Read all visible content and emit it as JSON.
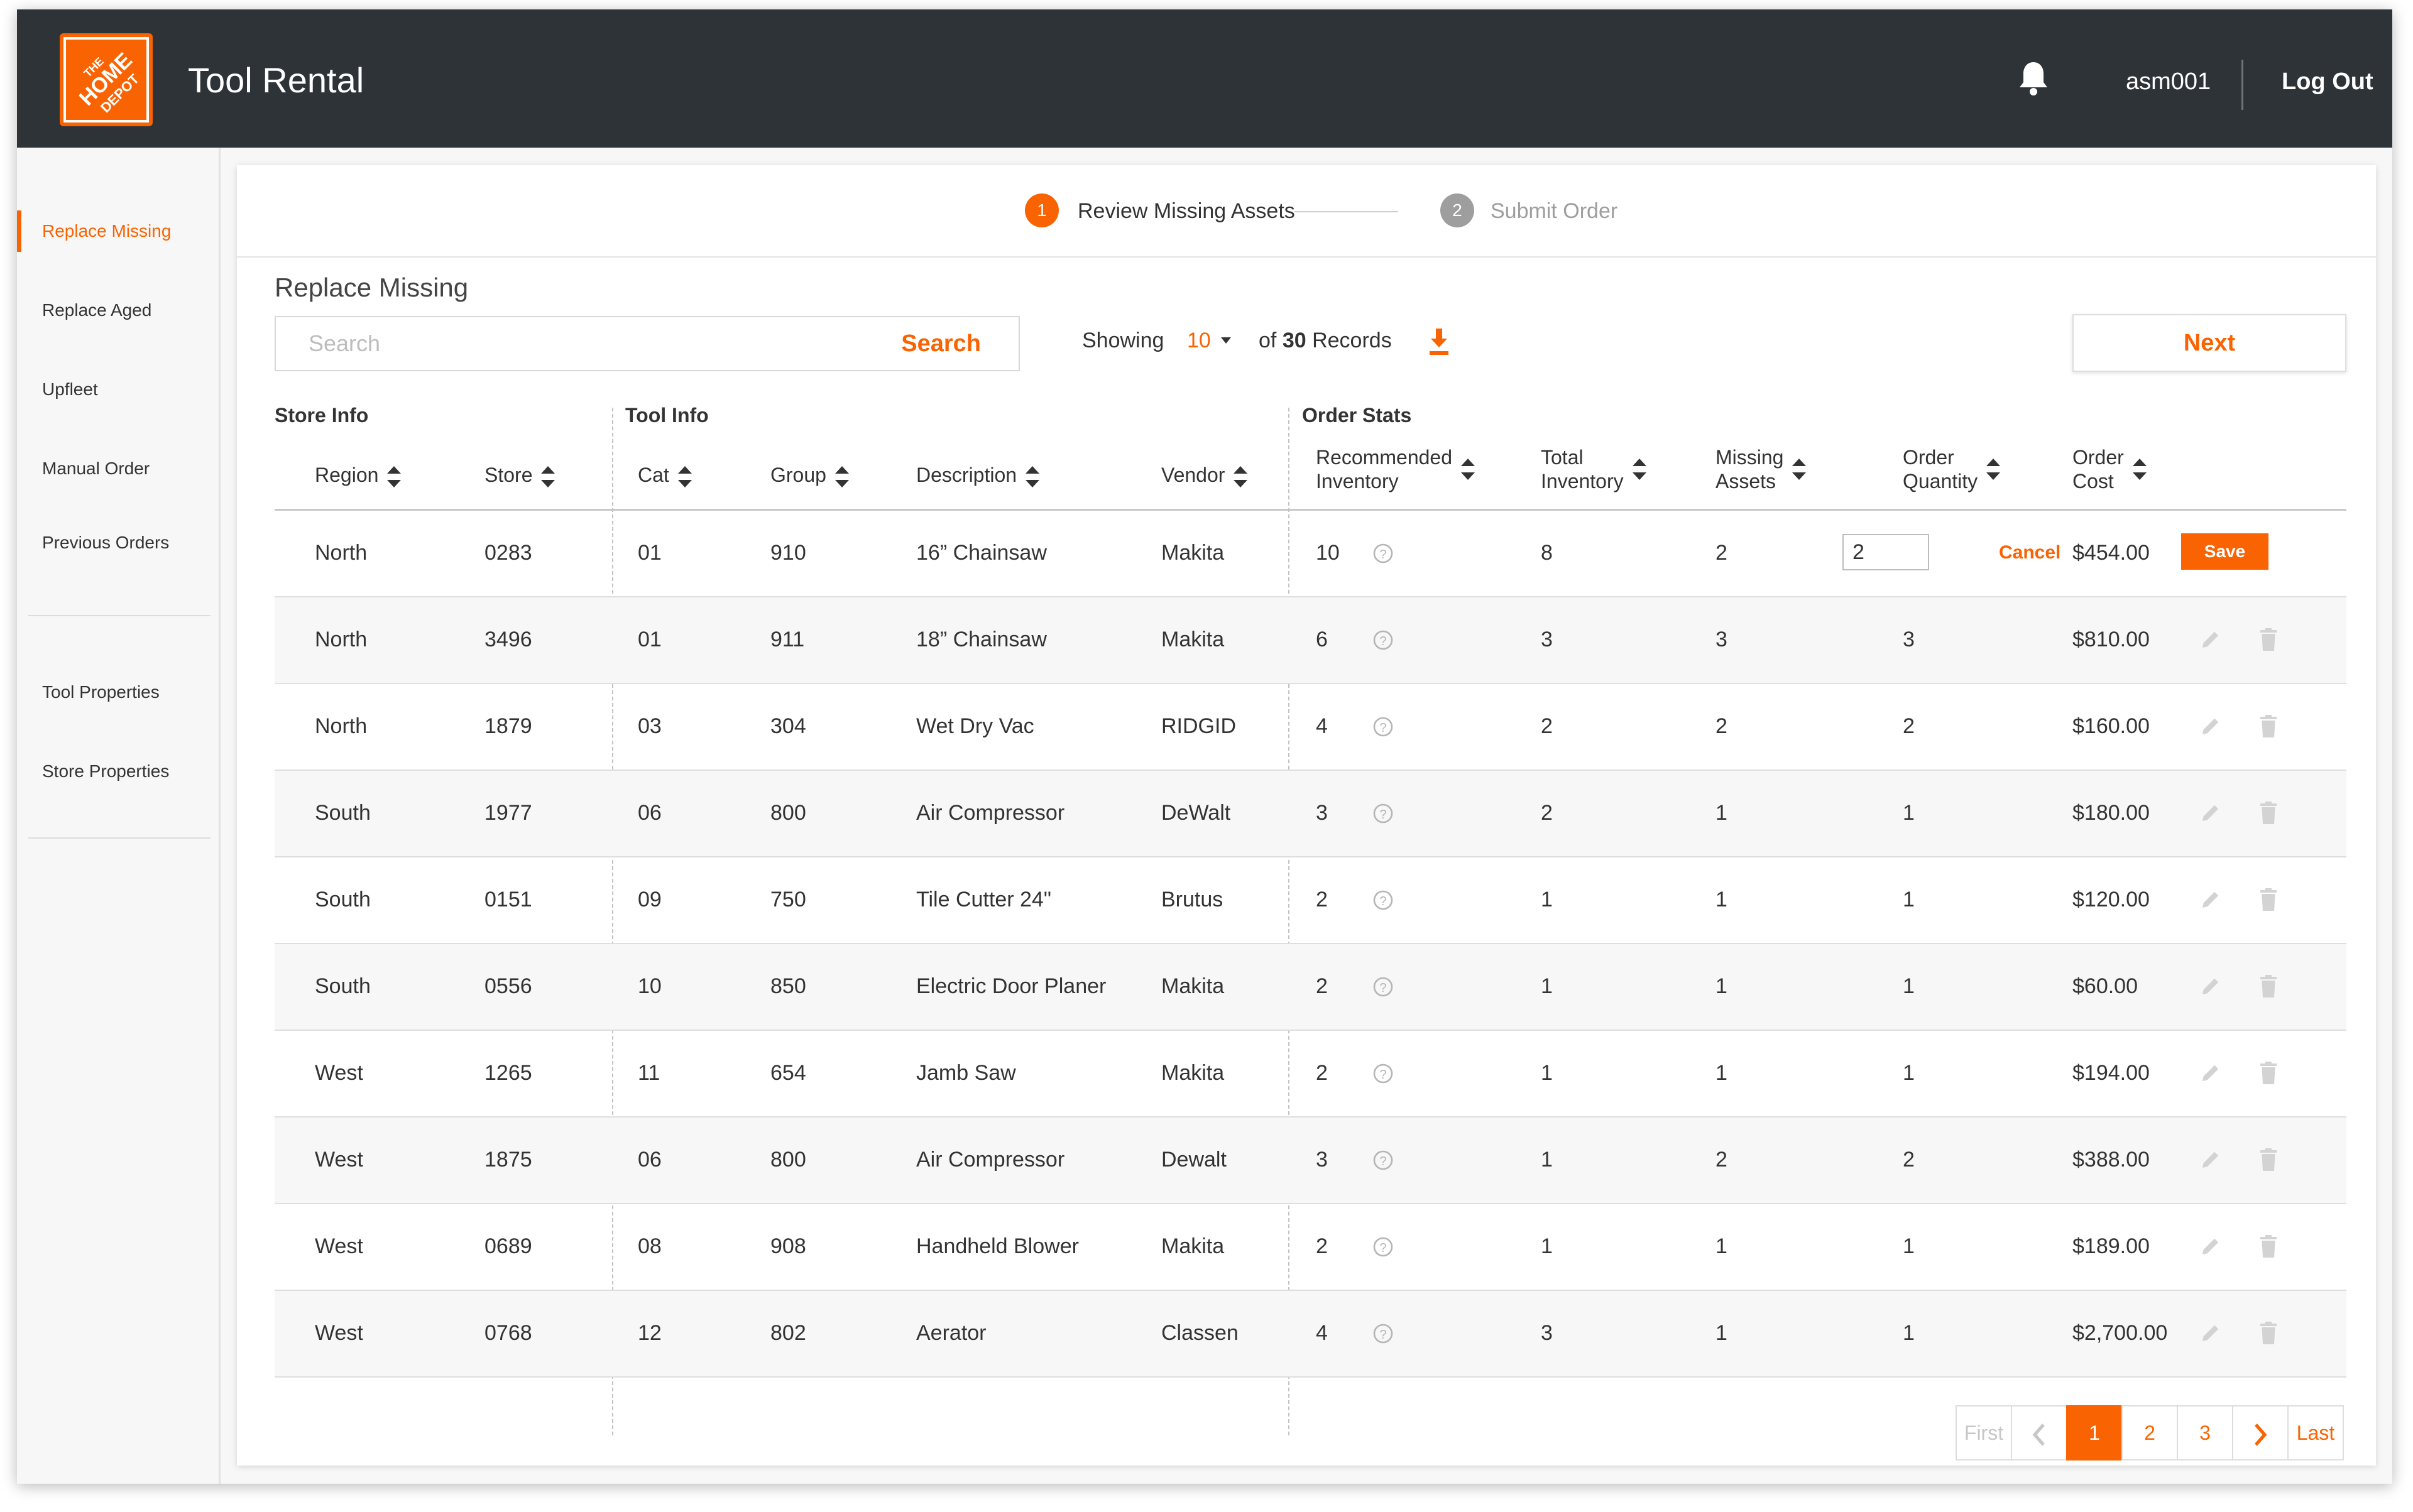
{
  "header": {
    "logo_text": [
      "THE",
      "HOME",
      "DEPOT"
    ],
    "title": "Tool Rental",
    "username": "asm001",
    "logout_label": "Log Out",
    "brand_color": "#f96302",
    "bar_color": "#2e3338"
  },
  "sidebar": {
    "items": [
      {
        "label": "Replace Missing",
        "active": true
      },
      {
        "label": "Replace Aged"
      },
      {
        "label": "Upfleet"
      },
      {
        "label": "Manual Order"
      },
      {
        "label": "Previous Orders"
      },
      {
        "label": "Tool Properties"
      },
      {
        "label": "Store Properties"
      }
    ]
  },
  "stepper": {
    "steps": [
      {
        "number": "1",
        "label": "Review Missing Assets",
        "active": true
      },
      {
        "number": "2",
        "label": "Submit Order",
        "active": false
      }
    ]
  },
  "page": {
    "title": "Replace Missing",
    "search": {
      "placeholder": "Search",
      "value": "",
      "button_label": "Search"
    },
    "showing_label": "Showing",
    "page_size": "10",
    "records_prefix": "of",
    "records_count": "30",
    "records_suffix": "Records",
    "next_label": "Next"
  },
  "table": {
    "groups": [
      "Store Info",
      "Tool Info",
      "Order Stats"
    ],
    "columns": [
      {
        "key": "region",
        "label": "Region"
      },
      {
        "key": "store",
        "label": "Store"
      },
      {
        "key": "cat",
        "label": "Cat"
      },
      {
        "key": "group",
        "label": "Group"
      },
      {
        "key": "description",
        "label": "Description"
      },
      {
        "key": "vendor",
        "label": "Vendor"
      },
      {
        "key": "recommended",
        "label": [
          "Recommended",
          "Inventory"
        ]
      },
      {
        "key": "total",
        "label": [
          "Total",
          "Inventory"
        ]
      },
      {
        "key": "missing",
        "label": [
          "Missing",
          "Assets"
        ]
      },
      {
        "key": "qty",
        "label": [
          "Order",
          "Quantity"
        ]
      },
      {
        "key": "cost",
        "label": [
          "Order",
          "Cost"
        ]
      }
    ],
    "rows": [
      {
        "region": "North",
        "store": "0283",
        "cat": "01",
        "group": "910",
        "description": "16” Chainsaw",
        "vendor": "Makita",
        "recommended": "10",
        "total": "8",
        "missing": "2",
        "qty": "2",
        "cost": "$454.00",
        "editing": true
      },
      {
        "region": "North",
        "store": "3496",
        "cat": "01",
        "group": "911",
        "description": "18” Chainsaw",
        "vendor": "Makita",
        "recommended": "6",
        "total": "3",
        "missing": "3",
        "qty": "3",
        "cost": "$810.00"
      },
      {
        "region": "North",
        "store": "1879",
        "cat": "03",
        "group": "304",
        "description": "Wet Dry Vac",
        "vendor": "RIDGID",
        "recommended": "4",
        "total": "2",
        "missing": "2",
        "qty": "2",
        "cost": "$160.00"
      },
      {
        "region": "South",
        "store": "1977",
        "cat": "06",
        "group": "800",
        "description": "Air Compressor",
        "vendor": "DeWalt",
        "recommended": "3",
        "total": "2",
        "missing": "1",
        "qty": "1",
        "cost": "$180.00"
      },
      {
        "region": "South",
        "store": "0151",
        "cat": "09",
        "group": "750",
        "description": "Tile Cutter 24\"",
        "vendor": "Brutus",
        "recommended": "2",
        "total": "1",
        "missing": "1",
        "qty": "1",
        "cost": "$120.00"
      },
      {
        "region": "South",
        "store": "0556",
        "cat": "10",
        "group": "850",
        "description": "Electric Door Planer",
        "vendor": "Makita",
        "recommended": "2",
        "total": "1",
        "missing": "1",
        "qty": "1",
        "cost": "$60.00"
      },
      {
        "region": "West",
        "store": "1265",
        "cat": "11",
        "group": "654",
        "description": "Jamb Saw",
        "vendor": "Makita",
        "recommended": "2",
        "total": "1",
        "missing": "1",
        "qty": "1",
        "cost": "$194.00"
      },
      {
        "region": "West",
        "store": "1875",
        "cat": "06",
        "group": "800",
        "description": "Air Compressor",
        "vendor": "Dewalt",
        "recommended": "3",
        "total": "1",
        "missing": "2",
        "qty": "2",
        "cost": "$388.00"
      },
      {
        "region": "West",
        "store": "0689",
        "cat": "08",
        "group": "908",
        "description": "Handheld Blower",
        "vendor": "Makita",
        "recommended": "2",
        "total": "1",
        "missing": "1",
        "qty": "1",
        "cost": "$189.00"
      },
      {
        "region": "West",
        "store": "0768",
        "cat": "12",
        "group": "802",
        "description": "Aerator",
        "vendor": "Classen",
        "recommended": "4",
        "total": "3",
        "missing": "1",
        "qty": "1",
        "cost": "$2,700.00"
      }
    ],
    "row_actions": {
      "cancel_label": "Cancel",
      "save_label": "Save",
      "edit_icon": "pencil-icon",
      "delete_icon": "trash-icon",
      "help_icon": "question-icon"
    }
  },
  "pagination": {
    "first_label": "First",
    "last_label": "Last",
    "pages": [
      "1",
      "2",
      "3"
    ],
    "current": "1"
  }
}
